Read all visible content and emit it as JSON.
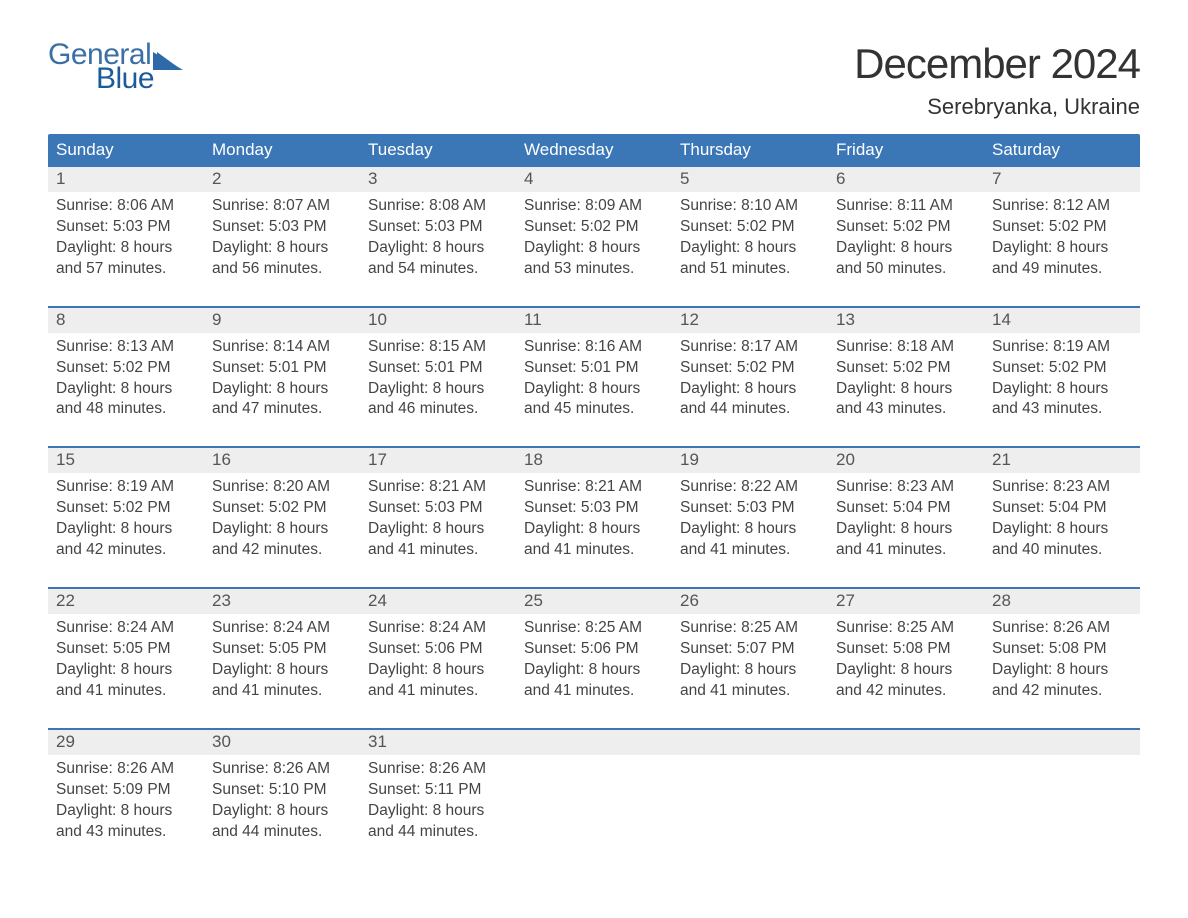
{
  "logo": {
    "top": "General",
    "bottom": "Blue",
    "flag_color": "#2f6aa8"
  },
  "title": "December 2024",
  "location": "Serebryanka, Ukraine",
  "colors": {
    "header_bg": "#3b77b6",
    "header_text": "#ffffff",
    "daynum_bg": "#eeeeee",
    "week_border": "#3b77b6",
    "body_text": "#444444",
    "title_text": "#333333",
    "logo_top": "#3b6fa6",
    "logo_bottom": "#1d5a99",
    "page_bg": "#ffffff"
  },
  "typography": {
    "title_fontsize": 42,
    "location_fontsize": 22,
    "dow_fontsize": 17,
    "daynum_fontsize": 17,
    "body_fontsize": 15.5,
    "logo_fontsize": 30
  },
  "days_of_week": [
    "Sunday",
    "Monday",
    "Tuesday",
    "Wednesday",
    "Thursday",
    "Friday",
    "Saturday"
  ],
  "weeks": [
    [
      {
        "n": "1",
        "sunrise": "Sunrise: 8:06 AM",
        "sunset": "Sunset: 5:03 PM",
        "d1": "Daylight: 8 hours",
        "d2": "and 57 minutes."
      },
      {
        "n": "2",
        "sunrise": "Sunrise: 8:07 AM",
        "sunset": "Sunset: 5:03 PM",
        "d1": "Daylight: 8 hours",
        "d2": "and 56 minutes."
      },
      {
        "n": "3",
        "sunrise": "Sunrise: 8:08 AM",
        "sunset": "Sunset: 5:03 PM",
        "d1": "Daylight: 8 hours",
        "d2": "and 54 minutes."
      },
      {
        "n": "4",
        "sunrise": "Sunrise: 8:09 AM",
        "sunset": "Sunset: 5:02 PM",
        "d1": "Daylight: 8 hours",
        "d2": "and 53 minutes."
      },
      {
        "n": "5",
        "sunrise": "Sunrise: 8:10 AM",
        "sunset": "Sunset: 5:02 PM",
        "d1": "Daylight: 8 hours",
        "d2": "and 51 minutes."
      },
      {
        "n": "6",
        "sunrise": "Sunrise: 8:11 AM",
        "sunset": "Sunset: 5:02 PM",
        "d1": "Daylight: 8 hours",
        "d2": "and 50 minutes."
      },
      {
        "n": "7",
        "sunrise": "Sunrise: 8:12 AM",
        "sunset": "Sunset: 5:02 PM",
        "d1": "Daylight: 8 hours",
        "d2": "and 49 minutes."
      }
    ],
    [
      {
        "n": "8",
        "sunrise": "Sunrise: 8:13 AM",
        "sunset": "Sunset: 5:02 PM",
        "d1": "Daylight: 8 hours",
        "d2": "and 48 minutes."
      },
      {
        "n": "9",
        "sunrise": "Sunrise: 8:14 AM",
        "sunset": "Sunset: 5:01 PM",
        "d1": "Daylight: 8 hours",
        "d2": "and 47 minutes."
      },
      {
        "n": "10",
        "sunrise": "Sunrise: 8:15 AM",
        "sunset": "Sunset: 5:01 PM",
        "d1": "Daylight: 8 hours",
        "d2": "and 46 minutes."
      },
      {
        "n": "11",
        "sunrise": "Sunrise: 8:16 AM",
        "sunset": "Sunset: 5:01 PM",
        "d1": "Daylight: 8 hours",
        "d2": "and 45 minutes."
      },
      {
        "n": "12",
        "sunrise": "Sunrise: 8:17 AM",
        "sunset": "Sunset: 5:02 PM",
        "d1": "Daylight: 8 hours",
        "d2": "and 44 minutes."
      },
      {
        "n": "13",
        "sunrise": "Sunrise: 8:18 AM",
        "sunset": "Sunset: 5:02 PM",
        "d1": "Daylight: 8 hours",
        "d2": "and 43 minutes."
      },
      {
        "n": "14",
        "sunrise": "Sunrise: 8:19 AM",
        "sunset": "Sunset: 5:02 PM",
        "d1": "Daylight: 8 hours",
        "d2": "and 43 minutes."
      }
    ],
    [
      {
        "n": "15",
        "sunrise": "Sunrise: 8:19 AM",
        "sunset": "Sunset: 5:02 PM",
        "d1": "Daylight: 8 hours",
        "d2": "and 42 minutes."
      },
      {
        "n": "16",
        "sunrise": "Sunrise: 8:20 AM",
        "sunset": "Sunset: 5:02 PM",
        "d1": "Daylight: 8 hours",
        "d2": "and 42 minutes."
      },
      {
        "n": "17",
        "sunrise": "Sunrise: 8:21 AM",
        "sunset": "Sunset: 5:03 PM",
        "d1": "Daylight: 8 hours",
        "d2": "and 41 minutes."
      },
      {
        "n": "18",
        "sunrise": "Sunrise: 8:21 AM",
        "sunset": "Sunset: 5:03 PM",
        "d1": "Daylight: 8 hours",
        "d2": "and 41 minutes."
      },
      {
        "n": "19",
        "sunrise": "Sunrise: 8:22 AM",
        "sunset": "Sunset: 5:03 PM",
        "d1": "Daylight: 8 hours",
        "d2": "and 41 minutes."
      },
      {
        "n": "20",
        "sunrise": "Sunrise: 8:23 AM",
        "sunset": "Sunset: 5:04 PM",
        "d1": "Daylight: 8 hours",
        "d2": "and 41 minutes."
      },
      {
        "n": "21",
        "sunrise": "Sunrise: 8:23 AM",
        "sunset": "Sunset: 5:04 PM",
        "d1": "Daylight: 8 hours",
        "d2": "and 40 minutes."
      }
    ],
    [
      {
        "n": "22",
        "sunrise": "Sunrise: 8:24 AM",
        "sunset": "Sunset: 5:05 PM",
        "d1": "Daylight: 8 hours",
        "d2": "and 41 minutes."
      },
      {
        "n": "23",
        "sunrise": "Sunrise: 8:24 AM",
        "sunset": "Sunset: 5:05 PM",
        "d1": "Daylight: 8 hours",
        "d2": "and 41 minutes."
      },
      {
        "n": "24",
        "sunrise": "Sunrise: 8:24 AM",
        "sunset": "Sunset: 5:06 PM",
        "d1": "Daylight: 8 hours",
        "d2": "and 41 minutes."
      },
      {
        "n": "25",
        "sunrise": "Sunrise: 8:25 AM",
        "sunset": "Sunset: 5:06 PM",
        "d1": "Daylight: 8 hours",
        "d2": "and 41 minutes."
      },
      {
        "n": "26",
        "sunrise": "Sunrise: 8:25 AM",
        "sunset": "Sunset: 5:07 PM",
        "d1": "Daylight: 8 hours",
        "d2": "and 41 minutes."
      },
      {
        "n": "27",
        "sunrise": "Sunrise: 8:25 AM",
        "sunset": "Sunset: 5:08 PM",
        "d1": "Daylight: 8 hours",
        "d2": "and 42 minutes."
      },
      {
        "n": "28",
        "sunrise": "Sunrise: 8:26 AM",
        "sunset": "Sunset: 5:08 PM",
        "d1": "Daylight: 8 hours",
        "d2": "and 42 minutes."
      }
    ],
    [
      {
        "n": "29",
        "sunrise": "Sunrise: 8:26 AM",
        "sunset": "Sunset: 5:09 PM",
        "d1": "Daylight: 8 hours",
        "d2": "and 43 minutes."
      },
      {
        "n": "30",
        "sunrise": "Sunrise: 8:26 AM",
        "sunset": "Sunset: 5:10 PM",
        "d1": "Daylight: 8 hours",
        "d2": "and 44 minutes."
      },
      {
        "n": "31",
        "sunrise": "Sunrise: 8:26 AM",
        "sunset": "Sunset: 5:11 PM",
        "d1": "Daylight: 8 hours",
        "d2": "and 44 minutes."
      },
      null,
      null,
      null,
      null
    ]
  ]
}
